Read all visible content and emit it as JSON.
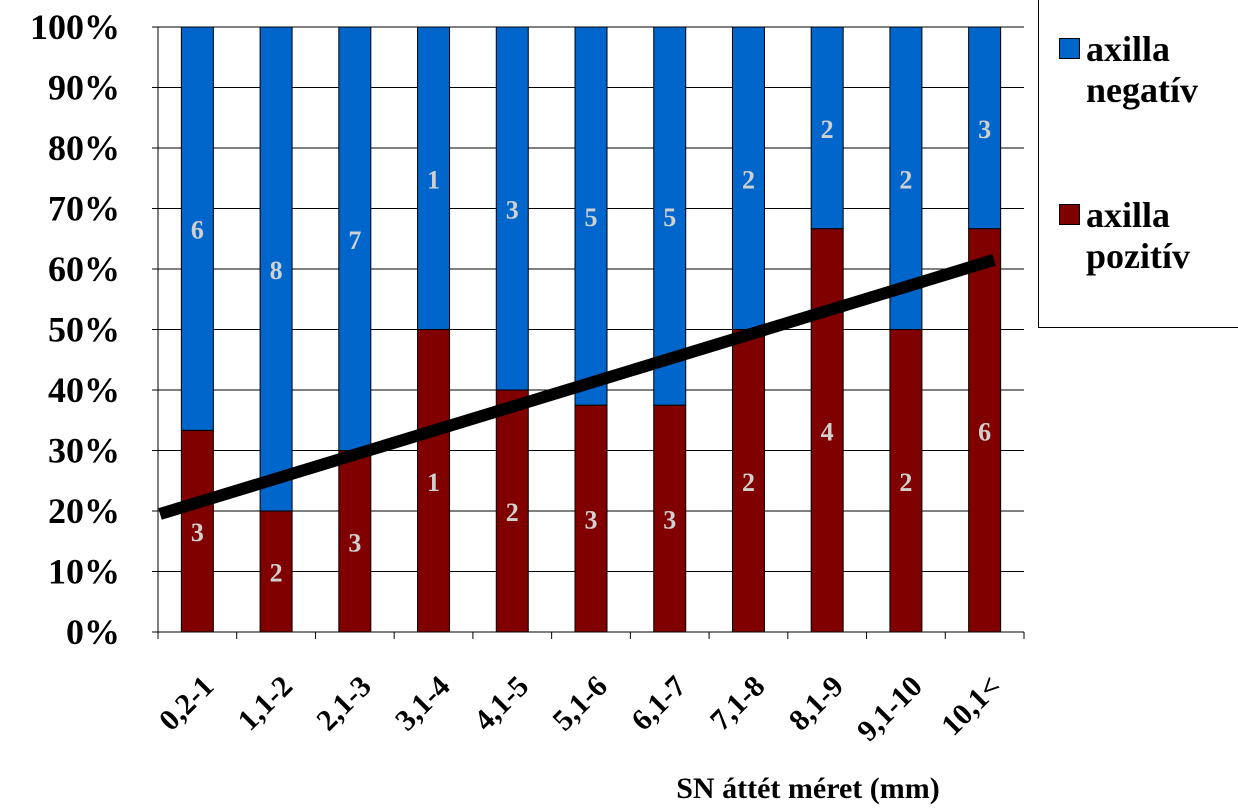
{
  "chart_data": {
    "type": "bar",
    "stacked": true,
    "percent": true,
    "xlabel": "SN áttét méret (mm)",
    "ylabel": "",
    "ylim": [
      0,
      100
    ],
    "yticks": [
      "0%",
      "10%",
      "20%",
      "30%",
      "40%",
      "50%",
      "60%",
      "70%",
      "80%",
      "90%",
      "100%"
    ],
    "categories": [
      "0,2-1",
      "1,1-2",
      "2,1-3",
      "3,1-4",
      "4,1-5",
      "5,1-6",
      "6,1-7",
      "7,1-8",
      "8,1-9",
      "9,1-10",
      "10,1<"
    ],
    "series": [
      {
        "name": "axilla pozitív",
        "color": "#800000",
        "values": [
          3,
          2,
          3,
          1,
          2,
          3,
          3,
          2,
          4,
          2,
          6
        ]
      },
      {
        "name": "axilla negatív",
        "color": "#0066CC",
        "values": [
          6,
          8,
          7,
          1,
          3,
          5,
          5,
          2,
          2,
          2,
          3
        ]
      }
    ],
    "trendline": {
      "color": "#000000",
      "start_percent": 19.5,
      "end_percent": 61.5
    },
    "grid": true,
    "legend_position": "top-right",
    "label_color": "#D0D0D0"
  }
}
